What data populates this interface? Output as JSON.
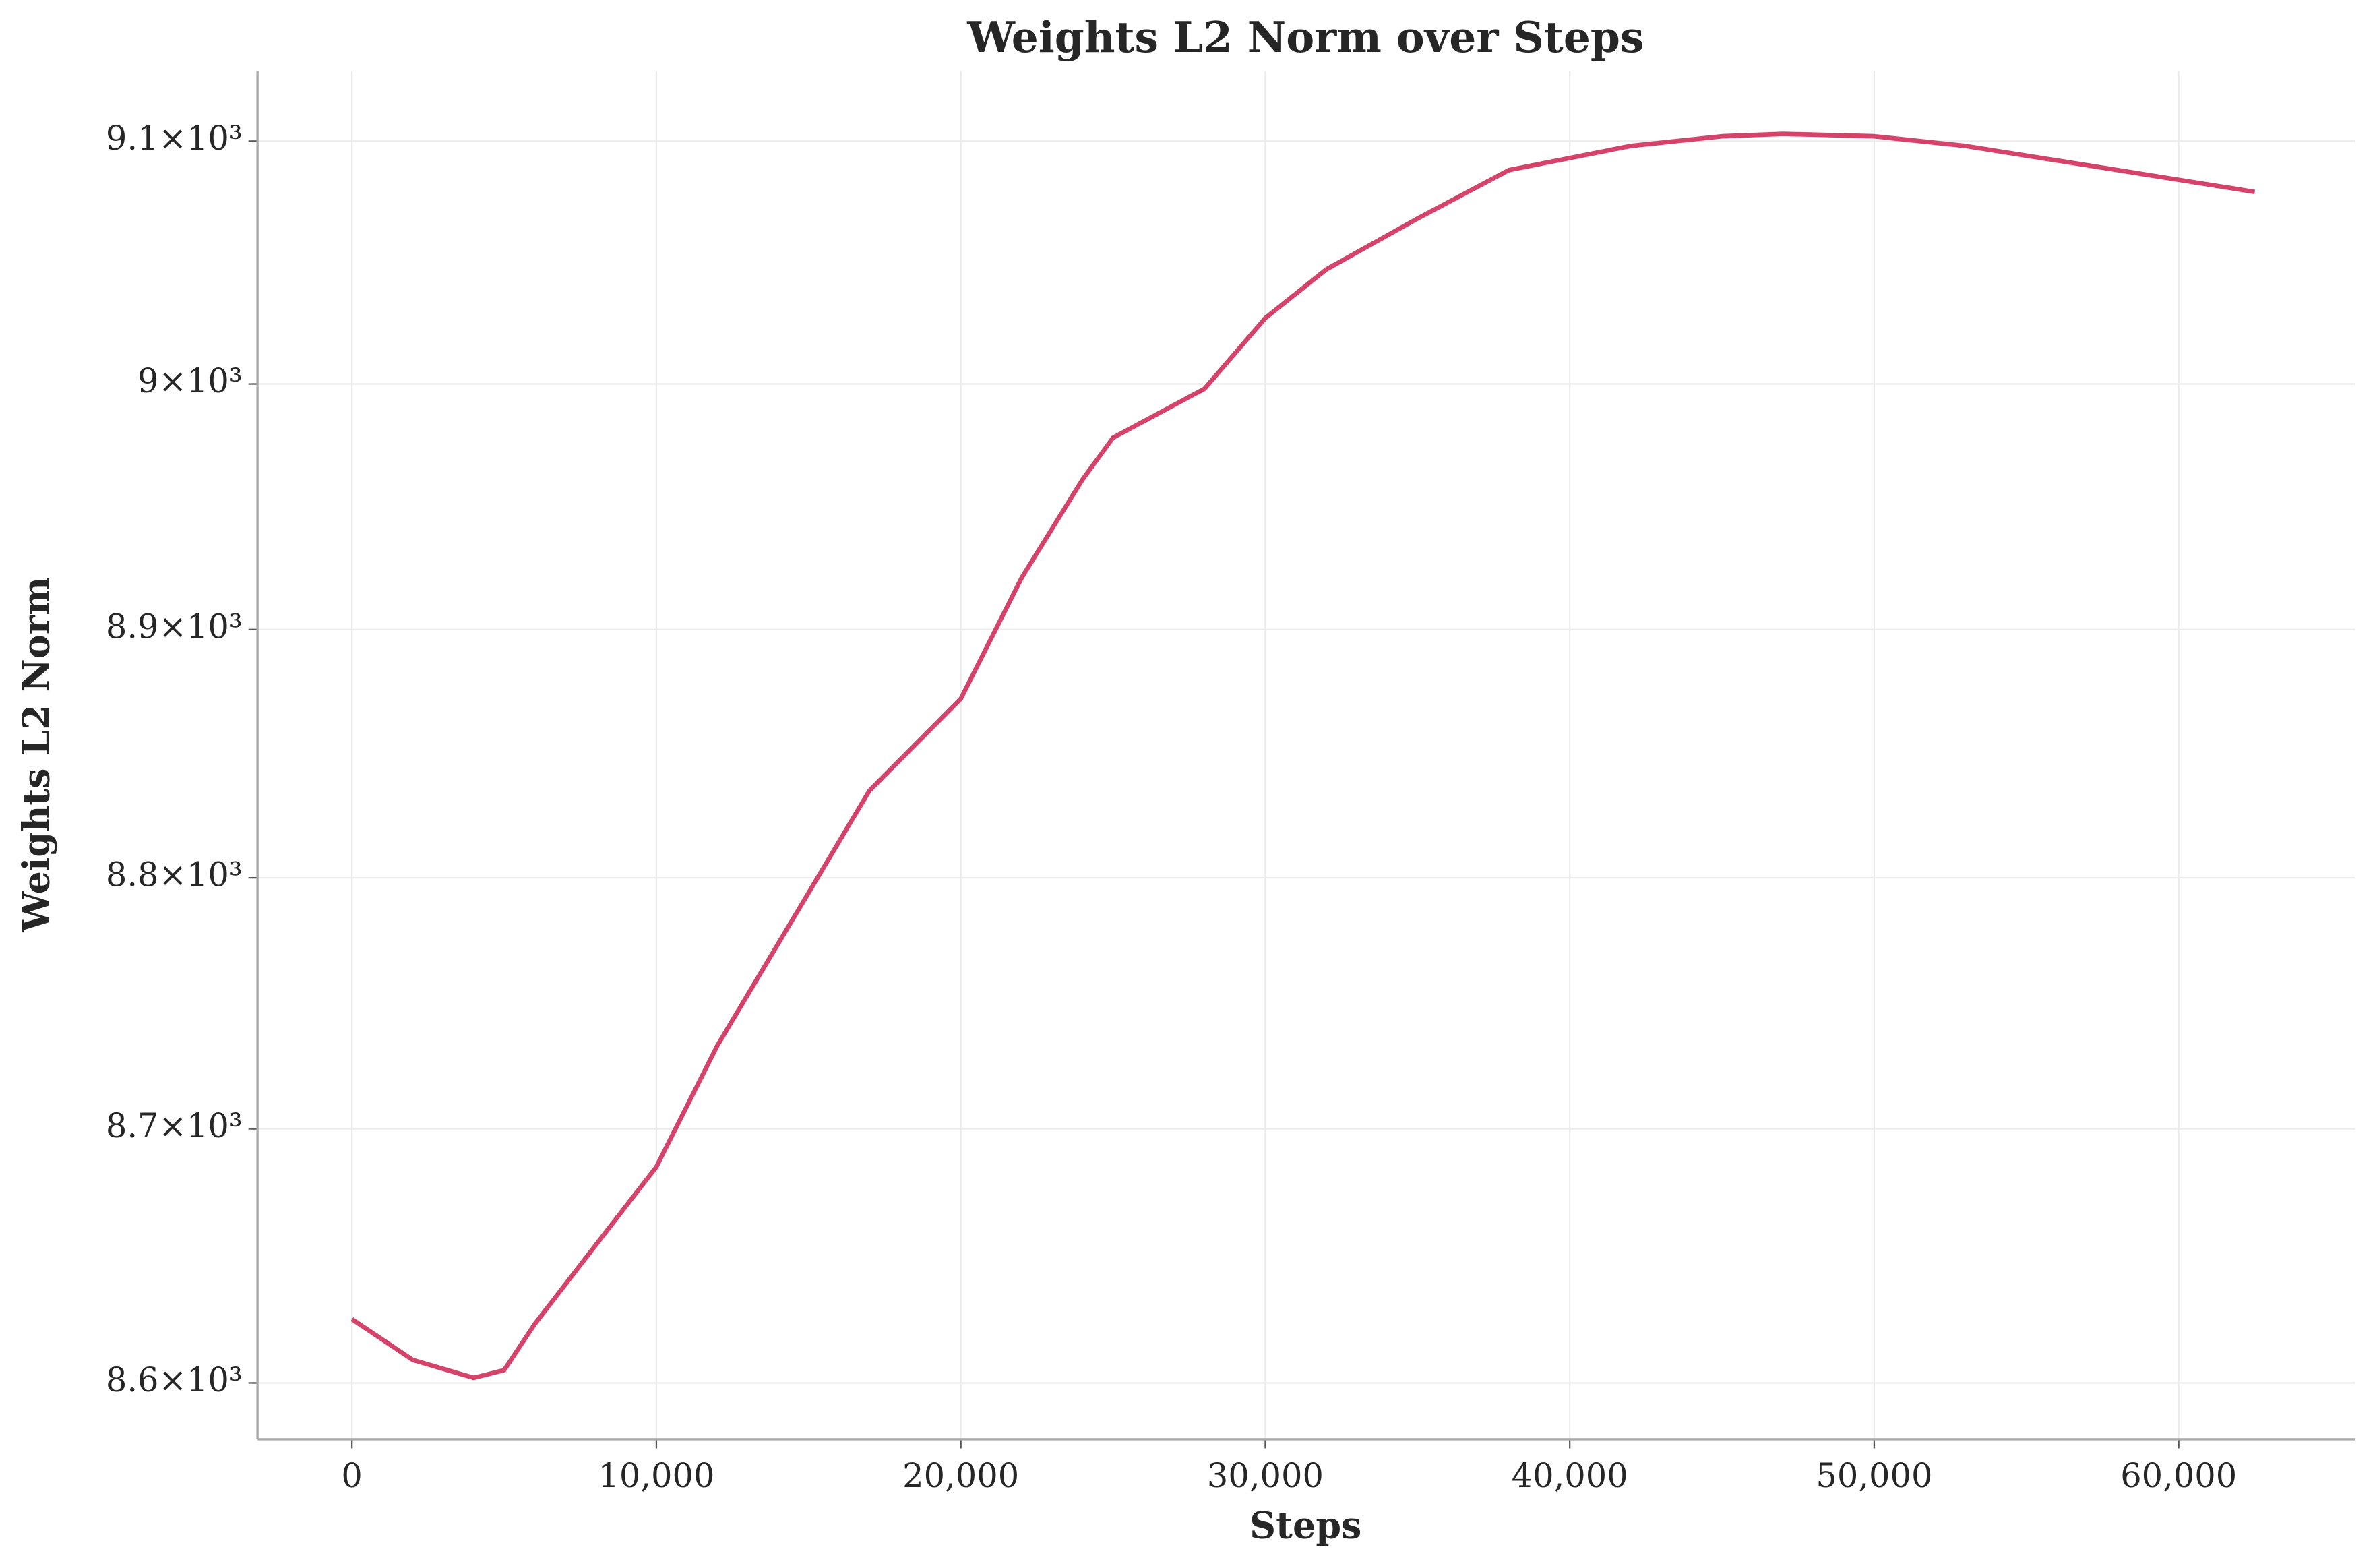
{
  "chart_data": {
    "type": "line",
    "title": "Weights L2 Norm over Steps",
    "x_label": "Steps",
    "y_label": "Weights L2 Norm",
    "yscale": "log",
    "grid": true,
    "xlim": [
      -3100,
      65800
    ],
    "ylim": [
      8578,
      9129
    ],
    "xticks": [
      0,
      {
        "value": 10000,
        "label": "10,000"
      },
      {
        "value": 20000,
        "label": "20,000"
      },
      {
        "value": 30000,
        "label": "30,000"
      },
      {
        "value": 40000,
        "label": "40,000"
      },
      {
        "value": 50000,
        "label": "50,000"
      },
      {
        "value": 60000,
        "label": "60,000"
      }
    ],
    "yticks": [
      {
        "value": 8600,
        "label": "8.6×10³"
      },
      {
        "value": 8700,
        "label": "8.7×10³"
      },
      {
        "value": 8800,
        "label": "8.8×10³"
      },
      {
        "value": 8900,
        "label": "8.9×10³"
      },
      {
        "value": 9000,
        "label": "9×10³"
      },
      {
        "value": 9100,
        "label": "9.1×10³"
      }
    ],
    "x": [
      0,
      2000,
      4000,
      5000,
      6000,
      8000,
      10000,
      12000,
      15000,
      17000,
      20000,
      22000,
      24000,
      25000,
      28000,
      30000,
      32000,
      35000,
      38000,
      40000,
      42000,
      45000,
      47000,
      50000,
      53000,
      56000,
      59000,
      62500
    ],
    "series": [
      {
        "name": "Weights L2 Norm",
        "color": "#d6436a",
        "values": [
          8625,
          8609,
          8602,
          8605,
          8623,
          8654,
          8685,
          8733,
          8794,
          8835,
          8872,
          8921,
          8961,
          8978,
          8998,
          9027,
          9047,
          9068,
          9088,
          9093,
          9098,
          9102,
          9103,
          9102,
          9098,
          9092,
          9086,
          9079
        ]
      }
    ]
  }
}
